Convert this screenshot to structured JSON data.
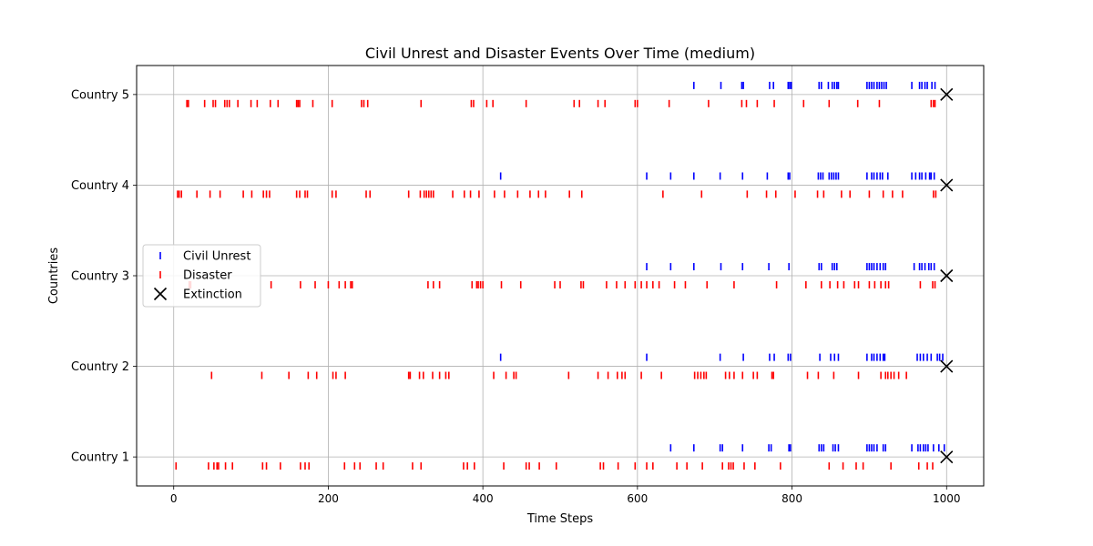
{
  "chart_data": {
    "type": "scatter",
    "title": "Civil Unrest and Disaster Events Over Time (medium)",
    "xlabel": "Time Steps",
    "ylabel": "Countries",
    "xlim": [
      -48,
      1048
    ],
    "ylim": [
      0.68,
      5.32
    ],
    "x_ticks": [
      0,
      200,
      400,
      600,
      800,
      1000
    ],
    "grid": true,
    "legend_position": "center-left",
    "categories": [
      "Country 1",
      "Country 2",
      "Country 3",
      "Country 4",
      "Country 5"
    ],
    "series": [
      {
        "name": "Civil Unrest",
        "color": "#0000ff",
        "marker": "vertical-line",
        "points": [
          {
            "y": 5,
            "x": [
              673,
              708,
              735,
              737,
              771,
              776,
              795,
              797,
              799,
              835,
              838,
              847,
              852,
              855,
              858,
              860,
              897,
              900,
              903,
              906,
              910,
              913,
              916,
              919,
              922,
              955,
              965,
              968,
              972,
              975,
              981,
              985
            ]
          },
          {
            "y": 4,
            "x": [
              423,
              612,
              643,
              673,
              707,
              736,
              768,
              795,
              797,
              834,
              837,
              840,
              848,
              851,
              854,
              857,
              860,
              897,
              903,
              906,
              910,
              914,
              917,
              924,
              955,
              960,
              965,
              968,
              973,
              978,
              980,
              984
            ]
          },
          {
            "y": 3,
            "x": [
              612,
              643,
              673,
              708,
              736,
              770,
              796,
              835,
              838,
              852,
              855,
              858,
              897,
              900,
              903,
              906,
              910,
              914,
              918,
              921,
              958,
              965,
              968,
              972,
              977,
              980,
              984
            ]
          },
          {
            "y": 2,
            "x": [
              423,
              612,
              707,
              737,
              771,
              777,
              795,
              798,
              836,
              850,
              855,
              860,
              897,
              903,
              906,
              910,
              914,
              918,
              920,
              962,
              966,
              970,
              975,
              980,
              988,
              991,
              995
            ]
          },
          {
            "y": 1,
            "x": [
              643,
              673,
              707,
              710,
              736,
              770,
              773,
              796,
              798,
              835,
              838,
              841,
              853,
              856,
              860,
              897,
              900,
              903,
              906,
              910,
              918,
              921,
              955,
              963,
              966,
              970,
              973,
              976,
              983,
              990,
              997
            ]
          }
        ]
      },
      {
        "name": "Disaster",
        "color": "#ff0000",
        "marker": "vertical-line",
        "points": [
          {
            "y": 5,
            "x": [
              17,
              19,
              40,
              51,
              54,
              66,
              69,
              72,
              83,
              100,
              108,
              125,
              135,
              159,
              161,
              163,
              180,
              205,
              243,
              246,
              251,
              320,
              385,
              388,
              405,
              413,
              456,
              518,
              525,
              549,
              558,
              597,
              600,
              641,
              692,
              735,
              741,
              755,
              777,
              815,
              848,
              885,
              913,
              980,
              983,
              985
            ]
          },
          {
            "y": 4,
            "x": [
              5,
              7,
              10,
              30,
              47,
              60,
              90,
              101,
              116,
              120,
              124,
              159,
              163,
              170,
              173,
              205,
              210,
              249,
              254,
              304,
              319,
              324,
              327,
              330,
              333,
              336,
              361,
              376,
              384,
              395,
              415,
              428,
              445,
              461,
              472,
              481,
              512,
              528,
              633,
              683,
              742,
              767,
              779,
              804,
              833,
              841,
              864,
              875,
              900,
              918,
              930,
              943,
              983,
              986
            ]
          },
          {
            "y": 3,
            "x": [
              20,
              22,
              126,
              164,
              183,
              200,
              214,
              222,
              229,
              231,
              329,
              336,
              344,
              386,
              392,
              394,
              397,
              400,
              424,
              449,
              493,
              500,
              527,
              530,
              560,
              573,
              584,
              597,
              605,
              612,
              620,
              628,
              648,
              662,
              690,
              725,
              780,
              818,
              838,
              849,
              859,
              867,
              881,
              886,
              900,
              907,
              915,
              921,
              925,
              966,
              982,
              985
            ]
          },
          {
            "y": 2,
            "x": [
              49,
              114,
              149,
              174,
              185,
              206,
              210,
              222,
              304,
              306,
              318,
              323,
              335,
              344,
              352,
              356,
              414,
              430,
              440,
              443,
              511,
              549,
              562,
              574,
              580,
              584,
              605,
              631,
              674,
              678,
              682,
              686,
              689,
              714,
              719,
              725,
              736,
              750,
              755,
              774,
              776,
              820,
              834,
              854,
              886,
              915,
              921,
              924,
              928,
              932,
              938,
              948
            ]
          },
          {
            "y": 1,
            "x": [
              3,
              45,
              52,
              56,
              58,
              67,
              76,
              115,
              120,
              138,
              164,
              170,
              175,
              221,
              234,
              241,
              262,
              271,
              309,
              320,
              375,
              380,
              389,
              427,
              456,
              460,
              473,
              495,
              552,
              556,
              575,
              597,
              612,
              620,
              651,
              664,
              684,
              710,
              718,
              721,
              724,
              738,
              752,
              785,
              848,
              866,
              883,
              892,
              928,
              964,
              975,
              982
            ]
          }
        ]
      },
      {
        "name": "Extinction",
        "color": "#000000",
        "marker": "x",
        "points": [
          {
            "y": 5,
            "x": [
              1000
            ]
          },
          {
            "y": 4,
            "x": [
              1000
            ]
          },
          {
            "y": 3,
            "x": [
              1000
            ]
          },
          {
            "y": 2,
            "x": [
              1000
            ]
          },
          {
            "y": 1,
            "x": [
              1000
            ]
          }
        ]
      }
    ]
  }
}
